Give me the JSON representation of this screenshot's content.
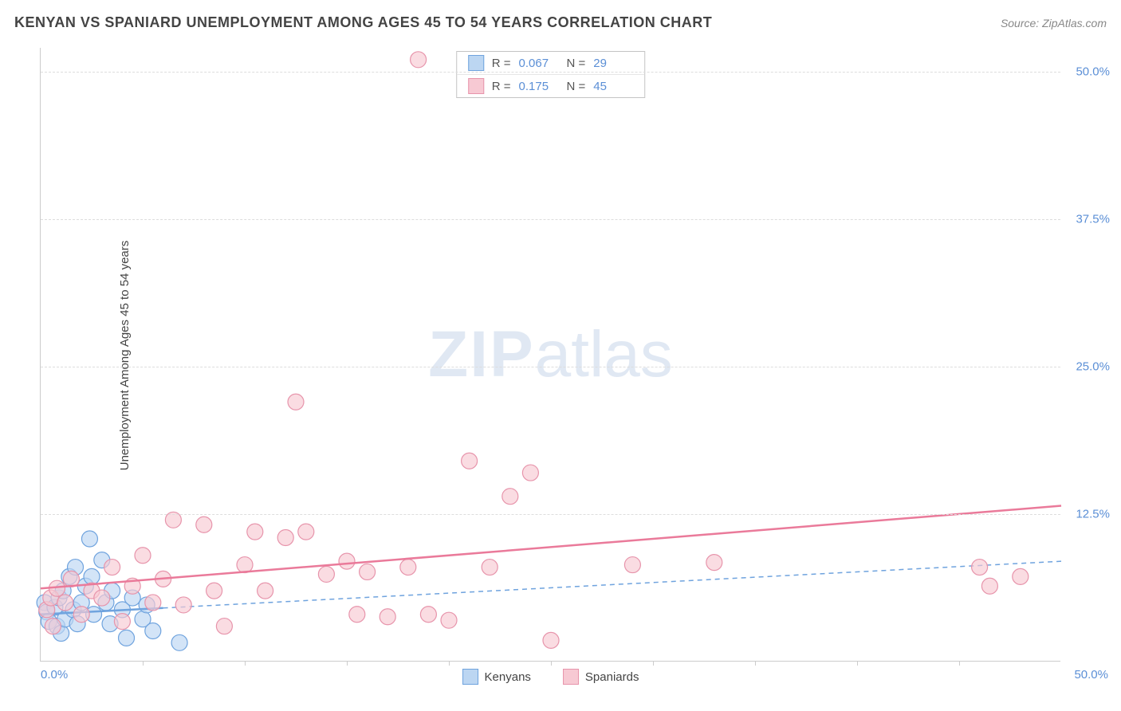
{
  "title": "KENYAN VS SPANIARD UNEMPLOYMENT AMONG AGES 45 TO 54 YEARS CORRELATION CHART",
  "source": "Source: ZipAtlas.com",
  "watermark_bold": "ZIP",
  "watermark_light": "atlas",
  "y_axis_label": "Unemployment Among Ages 45 to 54 years",
  "chart": {
    "type": "scatter",
    "xlim": [
      0,
      50
    ],
    "ylim": [
      0,
      52
    ],
    "x_origin_label": "0.0%",
    "x_max_label": "50.0%",
    "y_ticks": [
      {
        "v": 12.5,
        "label": "12.5%"
      },
      {
        "v": 25.0,
        "label": "25.0%"
      },
      {
        "v": 37.5,
        "label": "37.5%"
      },
      {
        "v": 50.0,
        "label": "50.0%"
      }
    ],
    "x_tick_positions": [
      5,
      10,
      15,
      20,
      25,
      30,
      35,
      40,
      45
    ],
    "background_color": "#ffffff",
    "grid_color": "#dddddd",
    "marker_radius": 10,
    "marker_stroke_width": 1.2,
    "trend_line_width": 2.5,
    "series": [
      {
        "name": "Kenyans",
        "fill": "#bcd6f2",
        "stroke": "#6fa3de",
        "fill_opacity": 0.65,
        "stats": {
          "R_label": "R =",
          "R": "0.067",
          "N_label": "N =",
          "N": "29"
        },
        "trend": {
          "x1": 0,
          "y1": 4.0,
          "x2": 50,
          "y2": 8.5,
          "dash": "6,5",
          "color": "#6fa3de"
        },
        "trend_solid_end_x": 6,
        "points": [
          [
            0.2,
            5.0
          ],
          [
            0.3,
            4.2
          ],
          [
            0.4,
            3.4
          ],
          [
            0.7,
            4.6
          ],
          [
            0.8,
            3.0
          ],
          [
            0.9,
            5.4
          ],
          [
            1.0,
            2.4
          ],
          [
            1.1,
            6.0
          ],
          [
            1.2,
            3.6
          ],
          [
            1.4,
            7.2
          ],
          [
            1.6,
            4.4
          ],
          [
            1.7,
            8.0
          ],
          [
            1.8,
            3.2
          ],
          [
            2.0,
            5.0
          ],
          [
            2.2,
            6.4
          ],
          [
            2.4,
            10.4
          ],
          [
            2.5,
            7.2
          ],
          [
            2.6,
            4.0
          ],
          [
            3.0,
            8.6
          ],
          [
            3.2,
            5.0
          ],
          [
            3.4,
            3.2
          ],
          [
            3.5,
            6.0
          ],
          [
            4.0,
            4.4
          ],
          [
            4.2,
            2.0
          ],
          [
            4.5,
            5.4
          ],
          [
            5.0,
            3.6
          ],
          [
            5.2,
            4.8
          ],
          [
            5.5,
            2.6
          ],
          [
            6.8,
            1.6
          ]
        ]
      },
      {
        "name": "Spaniards",
        "fill": "#f7c9d3",
        "stroke": "#e794ab",
        "fill_opacity": 0.65,
        "stats": {
          "R_label": "R = ",
          "R": "0.175",
          "N_label": "N =",
          "N": "45"
        },
        "trend": {
          "x1": 0,
          "y1": 6.2,
          "x2": 50,
          "y2": 13.2,
          "dash": "none",
          "color": "#ea7a9a"
        },
        "points": [
          [
            0.3,
            4.4
          ],
          [
            0.5,
            5.4
          ],
          [
            0.6,
            3.0
          ],
          [
            0.8,
            6.2
          ],
          [
            1.2,
            5.0
          ],
          [
            1.5,
            7.0
          ],
          [
            2.0,
            4.0
          ],
          [
            2.5,
            6.0
          ],
          [
            3.0,
            5.4
          ],
          [
            3.5,
            8.0
          ],
          [
            4.0,
            3.4
          ],
          [
            4.5,
            6.4
          ],
          [
            5.0,
            9.0
          ],
          [
            5.5,
            5.0
          ],
          [
            6.0,
            7.0
          ],
          [
            6.5,
            12.0
          ],
          [
            7.0,
            4.8
          ],
          [
            8.0,
            11.6
          ],
          [
            8.5,
            6.0
          ],
          [
            9.0,
            3.0
          ],
          [
            10.0,
            8.2
          ],
          [
            10.5,
            11.0
          ],
          [
            11.0,
            6.0
          ],
          [
            12.0,
            10.5
          ],
          [
            12.5,
            22.0
          ],
          [
            13.0,
            11.0
          ],
          [
            14.0,
            7.4
          ],
          [
            15.0,
            8.5
          ],
          [
            15.5,
            4.0
          ],
          [
            16.0,
            7.6
          ],
          [
            17.0,
            3.8
          ],
          [
            18.0,
            8.0
          ],
          [
            18.5,
            51.0
          ],
          [
            19.0,
            4.0
          ],
          [
            20.0,
            3.5
          ],
          [
            21.0,
            17.0
          ],
          [
            22.0,
            8.0
          ],
          [
            23.0,
            14.0
          ],
          [
            24.0,
            16.0
          ],
          [
            25.0,
            1.8
          ],
          [
            29.0,
            8.2
          ],
          [
            33.0,
            8.4
          ],
          [
            46.0,
            8.0
          ],
          [
            46.5,
            6.4
          ],
          [
            48.0,
            7.2
          ]
        ]
      }
    ]
  },
  "legend": {
    "series1_label": "Kenyans",
    "series2_label": "Spaniards"
  }
}
